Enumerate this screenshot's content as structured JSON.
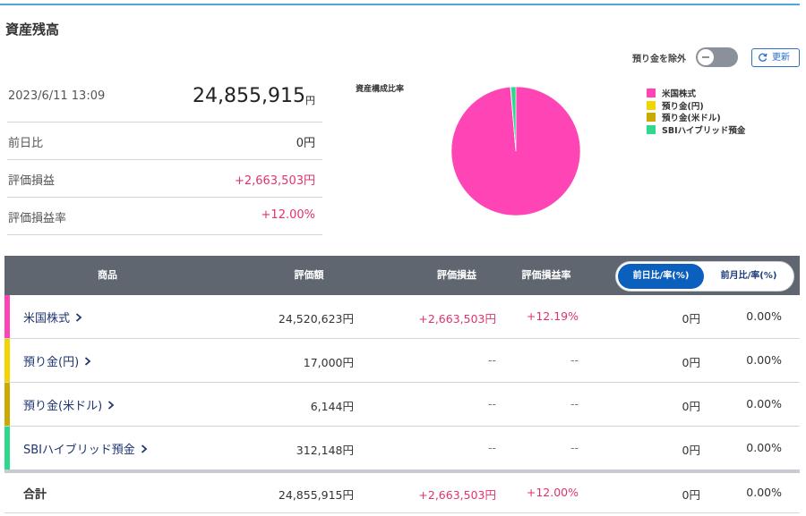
{
  "header": {
    "title": "資産残高"
  },
  "controls": {
    "toggle_label": "預り金を除外",
    "refresh": "更新"
  },
  "summary": {
    "timestamp": "2023/6/11 13:09",
    "total": "24,855,915",
    "total_unit": "円",
    "rows": [
      [
        "前日比",
        "0円"
      ],
      [
        "評価損益",
        "+2,663,503円"
      ],
      [
        "評価損益率",
        "+12.00%"
      ]
    ]
  },
  "chart_data": {
    "type": "pie",
    "title": "資産構成比率",
    "categories": [
      "米国株式",
      "預り金(円)",
      "預り金(米ドル)",
      "SBIハイブリッド預金"
    ],
    "values": [
      98.65,
      0.07,
      0.02,
      1.26
    ],
    "colors": [
      "#ff45b5",
      "#f2d400",
      "#c8aa00",
      "#2ed98b"
    ]
  },
  "table": {
    "columns": [
      "商品",
      "評価額",
      "評価損益",
      "評価損益率"
    ],
    "tabs": [
      "前日比/率(%)",
      "前月比/率(%)"
    ],
    "rows": [
      [
        "米国株式",
        "24,520,623円",
        "+2,663,503円",
        "+12.19%",
        "0円",
        "0.00%"
      ],
      [
        "預り金(円)",
        "17,000円",
        "--",
        "--",
        "0円",
        "0.00%"
      ],
      [
        "預り金(米ドル)",
        "6,144円",
        "--",
        "--",
        "0円",
        "0.00%"
      ],
      [
        "SBIハイブリッド預金",
        "312,148円",
        "--",
        "--",
        "0円",
        "0.00%"
      ]
    ],
    "total": [
      "合計",
      "24,855,915円",
      "+2,663,503円",
      "+12.00%",
      "0円",
      "0.00%"
    ]
  }
}
